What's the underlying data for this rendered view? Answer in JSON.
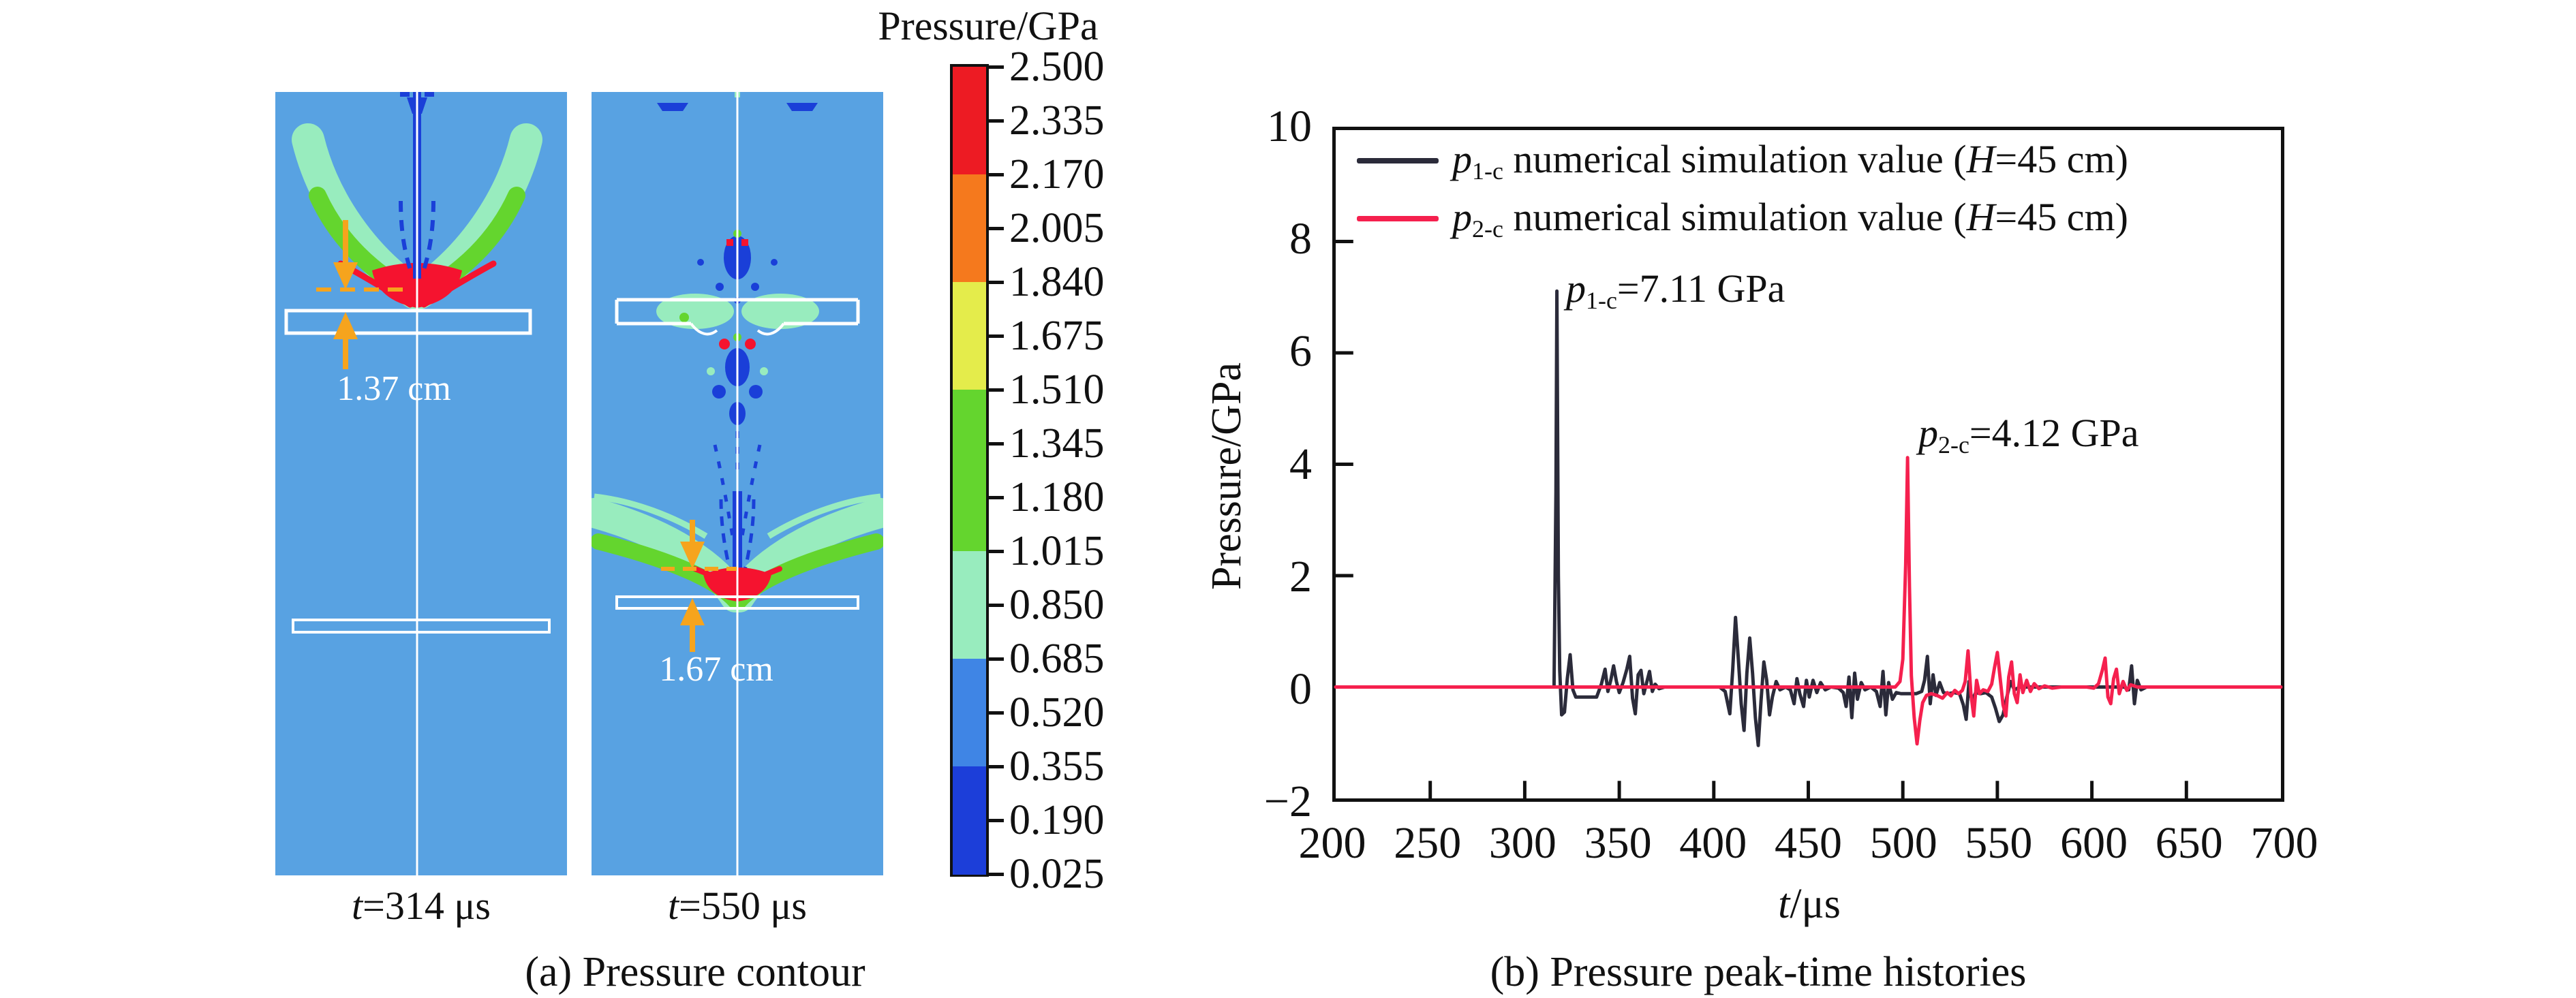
{
  "panel_a": {
    "caption": "(a) Pressure contour",
    "colorbar": {
      "title": "Pressure/GPa",
      "tick_labels": [
        "2.500",
        "2.335",
        "2.170",
        "2.005",
        "1.840",
        "1.675",
        "1.510",
        "1.345",
        "1.180",
        "1.015",
        "0.850",
        "0.685",
        "0.520",
        "0.355",
        "0.190",
        "0.025"
      ],
      "segment_colors": [
        "#ED1B23",
        "#ED1B23",
        "#F5791D",
        "#F5791D",
        "#E4EC4B",
        "#E4EC4B",
        "#64D52E",
        "#64D52E",
        "#64D52E",
        "#98ECBE",
        "#98ECBE",
        "#3F85E5",
        "#3F85E5",
        "#1C3ED9",
        "#1C3ED9"
      ]
    },
    "contours": [
      {
        "time_label": {
          "sym": "t",
          "tail": "=314 μs"
        },
        "dimension_label": "1.37 cm"
      },
      {
        "time_label": {
          "sym": "t",
          "tail": "=550 μs"
        },
        "dimension_label": "1.67 cm"
      }
    ],
    "colors": {
      "background": "#58A2E2",
      "deep_blue": "#1A3FD8",
      "wing_mint": "#98ECBE",
      "wing_green": "#64D52E",
      "core_red": "#F5132F",
      "dim_orange": "#F6A41D",
      "outline_white": "#FFFFFF"
    }
  },
  "panel_b": {
    "caption": "(b) Pressure peak-time histories",
    "ylabel": "Pressure/GPa",
    "xlabel": {
      "sym": "t",
      "tail": "/μs"
    },
    "legend": [
      {
        "sym": "p",
        "sub": "1-c",
        "mid": " numerical simulation value (",
        "hsym": "H",
        "tail": "=45 cm)"
      },
      {
        "sym": "p",
        "sub": "2-c",
        "mid": " numerical simulation value (",
        "hsym": "H",
        "tail": "=45 cm)"
      }
    ],
    "annotations": [
      {
        "sym": "p",
        "sub": "1-c",
        "tail": "=7.11 GPa"
      },
      {
        "sym": "p",
        "sub": "2-c",
        "tail": "=4.12 GPa"
      }
    ]
  },
  "chart_data": {
    "type": "line",
    "title": "Pressure peak-time histories",
    "xlabel": "t/μs",
    "ylabel": "Pressure/GPa",
    "xlim": [
      200,
      700
    ],
    "ylim": [
      -2,
      10
    ],
    "grid": false,
    "legend_position": "upper-left",
    "axis_color": "#111111",
    "xticks": [
      200,
      250,
      300,
      350,
      400,
      450,
      500,
      550,
      600,
      650,
      700
    ],
    "xtick_labels": [
      "200",
      "250",
      "300",
      "350",
      "400",
      "450",
      "500",
      "550",
      "600",
      "650",
      "700"
    ],
    "yticks": [
      10,
      8,
      6,
      4,
      2,
      0,
      -2
    ],
    "ytick_labels": [
      "10",
      "8",
      "6",
      "4",
      "2",
      "0",
      "−2"
    ],
    "series": [
      {
        "id": "p1c",
        "name": "p1-c numerical simulation value (H=45 cm)",
        "color": "#2B2B3A",
        "peak": {
          "t": 317,
          "p": 7.11
        },
        "points": [
          [
            200,
            0
          ],
          [
            310,
            0
          ],
          [
            315.5,
            0
          ],
          [
            316.5,
            3.5
          ],
          [
            317,
            7.11
          ],
          [
            317.8,
            2.0
          ],
          [
            318.5,
            0.3
          ],
          [
            319.5,
            -0.5
          ],
          [
            321,
            -0.45
          ],
          [
            322.5,
            0.15
          ],
          [
            324,
            0.58
          ],
          [
            325.5,
            -0.05
          ],
          [
            327,
            -0.18
          ],
          [
            332,
            -0.18
          ],
          [
            338,
            -0.18
          ],
          [
            340.5,
            0.05
          ],
          [
            342.5,
            0.32
          ],
          [
            344,
            -0.08
          ],
          [
            345.5,
            0.12
          ],
          [
            347,
            0.38
          ],
          [
            348.5,
            0.1
          ],
          [
            350,
            -0.1
          ],
          [
            352,
            0.08
          ],
          [
            354,
            0.32
          ],
          [
            355.5,
            0.55
          ],
          [
            357,
            -0.2
          ],
          [
            358.5,
            -0.48
          ],
          [
            360,
            0.22
          ],
          [
            361.5,
            0.3
          ],
          [
            363,
            -0.12
          ],
          [
            364.5,
            0.08
          ],
          [
            366,
            0.28
          ],
          [
            367.5,
            -0.08
          ],
          [
            369,
            0.05
          ],
          [
            371,
            -0.03
          ],
          [
            374,
            0
          ],
          [
            385,
            0
          ],
          [
            395,
            0
          ],
          [
            403,
            0
          ],
          [
            406,
            -0.08
          ],
          [
            408.5,
            -0.48
          ],
          [
            410,
            0.3
          ],
          [
            411.5,
            1.25
          ],
          [
            413,
            0.5
          ],
          [
            414.5,
            -0.3
          ],
          [
            416,
            -0.78
          ],
          [
            417.5,
            0.25
          ],
          [
            419,
            0.88
          ],
          [
            420.5,
            0.25
          ],
          [
            422,
            -0.55
          ],
          [
            423.5,
            -1.05
          ],
          [
            425,
            -0.25
          ],
          [
            426.5,
            0.45
          ],
          [
            428,
            0.12
          ],
          [
            429.5,
            -0.5
          ],
          [
            431,
            -0.18
          ],
          [
            433,
            0.1
          ],
          [
            435,
            -0.05
          ],
          [
            438,
            0
          ],
          [
            440.5,
            -0.05
          ],
          [
            442.5,
            -0.3
          ],
          [
            444,
            0.15
          ],
          [
            445.5,
            -0.12
          ],
          [
            447.5,
            -0.35
          ],
          [
            449,
            0.12
          ],
          [
            450.5,
            -0.18
          ],
          [
            452.5,
            0.12
          ],
          [
            454.5,
            -0.1
          ],
          [
            456.5,
            0.08
          ],
          [
            459,
            -0.05
          ],
          [
            462,
            0
          ],
          [
            466,
            -0.02
          ],
          [
            468.5,
            -0.1
          ],
          [
            470,
            -0.35
          ],
          [
            471.5,
            0.18
          ],
          [
            473,
            -0.55
          ],
          [
            474.5,
            0.25
          ],
          [
            476,
            -0.22
          ],
          [
            478,
            0.08
          ],
          [
            480,
            -0.05
          ],
          [
            483,
            0
          ],
          [
            486,
            -0.08
          ],
          [
            488,
            -0.35
          ],
          [
            489.5,
            0.28
          ],
          [
            491,
            -0.5
          ],
          [
            492.5,
            0.08
          ],
          [
            494.5,
            -0.22
          ],
          [
            496.5,
            -0.1
          ],
          [
            499,
            -0.12
          ],
          [
            503,
            -0.12
          ],
          [
            507,
            -0.12
          ],
          [
            510,
            -0.08
          ],
          [
            511.5,
            0.12
          ],
          [
            513,
            0.55
          ],
          [
            514.5,
            -0.3
          ],
          [
            516,
            0.22
          ],
          [
            517.5,
            -0.15
          ],
          [
            519.5,
            0.08
          ],
          [
            521.5,
            -0.1
          ],
          [
            524,
            -0.12
          ],
          [
            527,
            -0.1
          ],
          [
            530,
            -0.12
          ],
          [
            532,
            -0.32
          ],
          [
            533.5,
            -0.58
          ],
          [
            535,
            0.1
          ],
          [
            536.5,
            -0.25
          ],
          [
            538.5,
            -0.1
          ],
          [
            541,
            -0.12
          ],
          [
            544,
            -0.1
          ],
          [
            547,
            -0.18
          ],
          [
            549,
            -0.38
          ],
          [
            551,
            -0.62
          ],
          [
            553,
            -0.5
          ],
          [
            555,
            -0.18
          ],
          [
            557,
            0.1
          ],
          [
            559,
            -0.05
          ],
          [
            562,
            0
          ],
          [
            570,
            0
          ],
          [
            585,
            0
          ],
          [
            605,
            0
          ],
          [
            617,
            0
          ],
          [
            619.5,
            -0.05
          ],
          [
            621,
            0.38
          ],
          [
            622.5,
            -0.3
          ],
          [
            624,
            0.12
          ],
          [
            626,
            -0.05
          ],
          [
            629,
            0
          ],
          [
            645,
            0
          ],
          [
            670,
            0
          ],
          [
            700,
            0
          ]
        ]
      },
      {
        "id": "p2c",
        "name": "p2-c numerical simulation value (H=45 cm)",
        "color": "#F5204E",
        "peak": {
          "t": 502.5,
          "p": 4.12
        },
        "points": [
          [
            200,
            0
          ],
          [
            260,
            0
          ],
          [
            330,
            0
          ],
          [
            400,
            0
          ],
          [
            460,
            0
          ],
          [
            490,
            0
          ],
          [
            496,
            0
          ],
          [
            498.5,
            0.1
          ],
          [
            500,
            0.5
          ],
          [
            501.5,
            2.2
          ],
          [
            502.5,
            4.12
          ],
          [
            503.5,
            1.8
          ],
          [
            504.5,
            0.2
          ],
          [
            506,
            -0.55
          ],
          [
            507.5,
            -1.02
          ],
          [
            509,
            -0.6
          ],
          [
            510.5,
            -0.28
          ],
          [
            512.5,
            -0.15
          ],
          [
            515,
            -0.12
          ],
          [
            518,
            -0.15
          ],
          [
            521,
            -0.2
          ],
          [
            523.5,
            -0.1
          ],
          [
            525.5,
            -0.16
          ],
          [
            527.5,
            -0.06
          ],
          [
            529.5,
            -0.12
          ],
          [
            531.5,
            -0.06
          ],
          [
            533,
            0.1
          ],
          [
            534.5,
            0.65
          ],
          [
            536,
            -0.12
          ],
          [
            537.5,
            -0.52
          ],
          [
            539,
            0.12
          ],
          [
            540.5,
            -0.12
          ],
          [
            542.5,
            -0.05
          ],
          [
            545,
            -0.08
          ],
          [
            547,
            0.05
          ],
          [
            548.5,
            0.35
          ],
          [
            550,
            0.62
          ],
          [
            551.5,
            0.15
          ],
          [
            553,
            -0.32
          ],
          [
            554.5,
            -0.52
          ],
          [
            556,
            0.18
          ],
          [
            557.5,
            0.45
          ],
          [
            559,
            -0.12
          ],
          [
            560.5,
            -0.28
          ],
          [
            562,
            0.22
          ],
          [
            563.5,
            -0.1
          ],
          [
            565.5,
            0.12
          ],
          [
            567.5,
            -0.08
          ],
          [
            569.5,
            0.06
          ],
          [
            572,
            -0.03
          ],
          [
            575,
            0.02
          ],
          [
            579,
            -0.02
          ],
          [
            584,
            0
          ],
          [
            590,
            0
          ],
          [
            597,
            0
          ],
          [
            601,
            -0.02
          ],
          [
            603.5,
            0.06
          ],
          [
            605.5,
            0.3
          ],
          [
            607,
            0.52
          ],
          [
            608.5,
            -0.18
          ],
          [
            610,
            -0.3
          ],
          [
            611.5,
            0.15
          ],
          [
            613,
            0.32
          ],
          [
            614.5,
            -0.12
          ],
          [
            616.5,
            0.1
          ],
          [
            618.5,
            -0.06
          ],
          [
            620.5,
            0.04
          ],
          [
            624,
            0
          ],
          [
            635,
            0
          ],
          [
            655,
            0
          ],
          [
            680,
            0
          ],
          [
            700,
            0
          ]
        ]
      }
    ]
  }
}
